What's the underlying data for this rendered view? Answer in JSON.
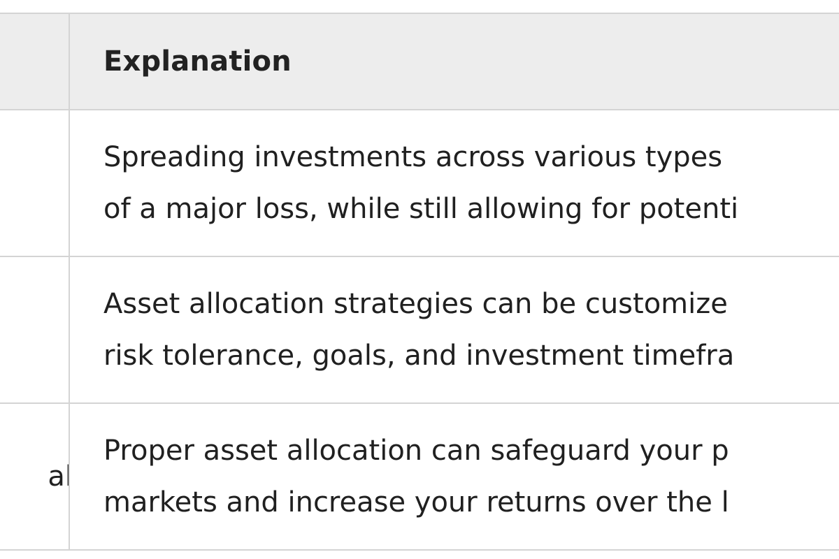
{
  "table": {
    "header": {
      "left": "",
      "right": "Explanation"
    },
    "rows": [
      {
        "left": "",
        "lines": [
          "Spreading investments across various types",
          "of a major loss, while still allowing for potenti"
        ]
      },
      {
        "left": "",
        "lines": [
          "Asset allocation strategies can be customize",
          "risk tolerance, goals, and investment timefra"
        ]
      },
      {
        "left": "al",
        "lines": [
          "Proper asset allocation can safeguard your p",
          "markets and increase your returns over the l"
        ]
      }
    ]
  }
}
